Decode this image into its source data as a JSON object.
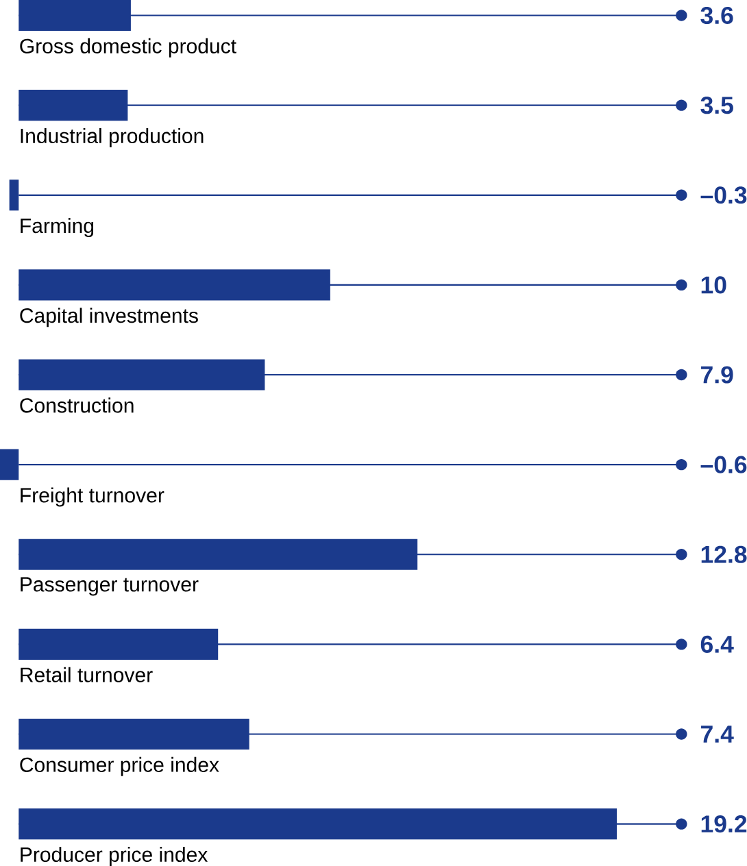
{
  "chart_data": {
    "type": "bar",
    "orientation": "horizontal",
    "categories": [
      "Gross domestic product",
      "Industrial production",
      "Farming",
      "Capital investments",
      "Construction",
      "Freight turnover",
      "Passenger turnover",
      "Retail turnover",
      "Consumer price index",
      "Producer price index"
    ],
    "values": [
      3.6,
      3.5,
      -0.3,
      10,
      7.9,
      -0.6,
      12.8,
      6.4,
      7.4,
      19.2
    ],
    "value_labels": [
      "3.6",
      "3.5",
      "–0.3",
      "10",
      "7.9",
      "–0.6",
      "12.8",
      "6.4",
      "7.4",
      "19.2"
    ],
    "color": "#1b3a8c"
  }
}
